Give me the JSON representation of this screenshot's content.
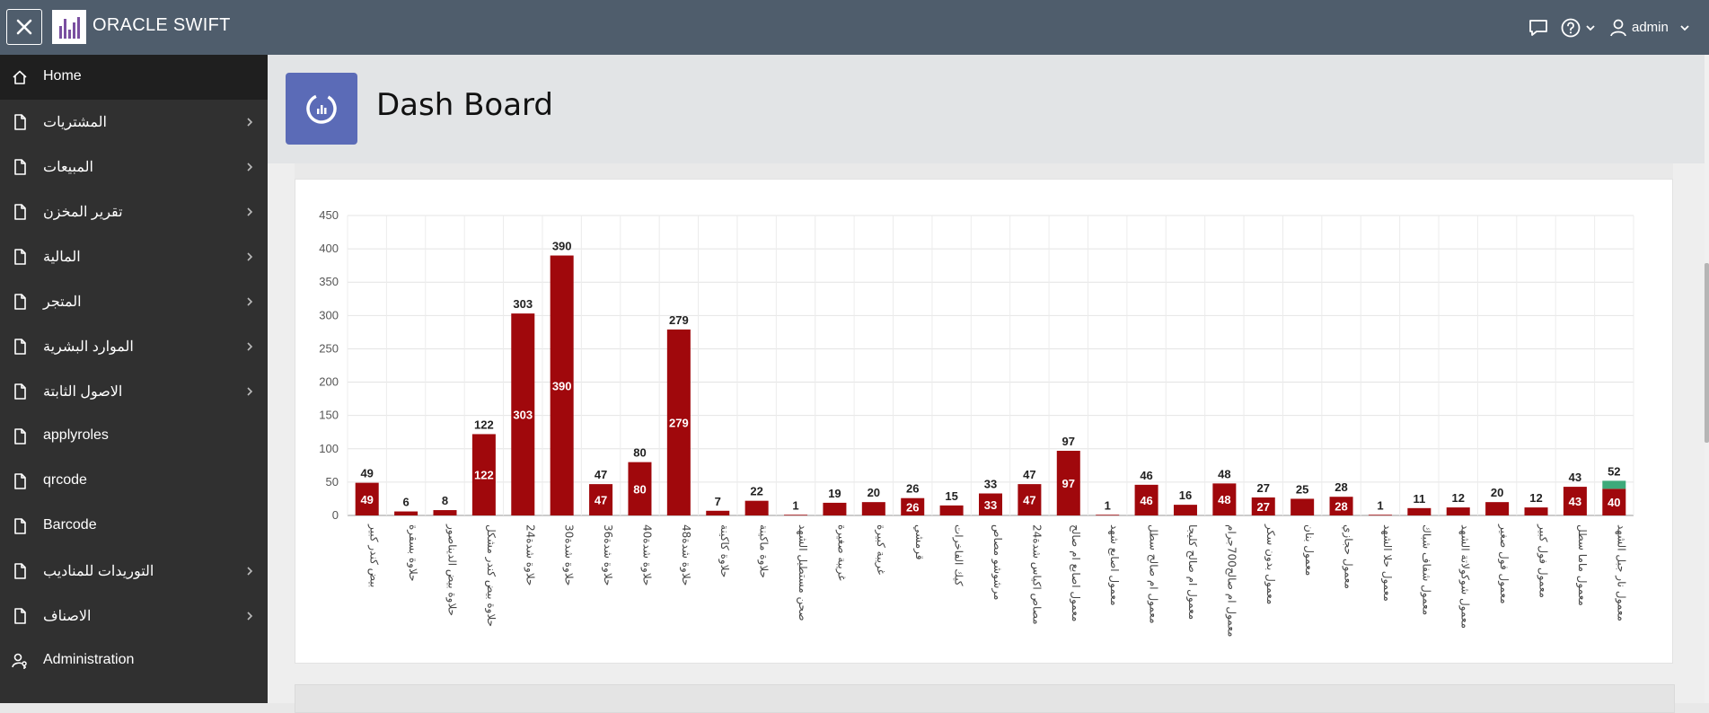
{
  "app": {
    "title": "ORACLE SWIFT",
    "user": "admin"
  },
  "page": {
    "title": "Dash Board"
  },
  "sidebar": {
    "items": [
      {
        "label": "Home",
        "icon": "home-icon",
        "has_children": false,
        "active": true
      },
      {
        "label": "المشتريات",
        "icon": "file-icon",
        "has_children": true
      },
      {
        "label": "المبيعات",
        "icon": "file-icon",
        "has_children": true
      },
      {
        "label": "تقرير المخزن",
        "icon": "file-icon",
        "has_children": true
      },
      {
        "label": "المالية",
        "icon": "file-icon",
        "has_children": true
      },
      {
        "label": "المتجر",
        "icon": "file-icon",
        "has_children": true
      },
      {
        "label": "الموارد البشرية",
        "icon": "file-icon",
        "has_children": true
      },
      {
        "label": "الاصول الثابتة",
        "icon": "file-icon",
        "has_children": true
      },
      {
        "label": "applyroles",
        "icon": "file-icon",
        "has_children": false
      },
      {
        "label": "qrcode",
        "icon": "file-icon",
        "has_children": false
      },
      {
        "label": "Barcode",
        "icon": "file-icon",
        "has_children": false
      },
      {
        "label": "التوريدات للمناديب",
        "icon": "file-icon",
        "has_children": true
      },
      {
        "label": "الاصناف",
        "icon": "file-icon",
        "has_children": true
      },
      {
        "label": "Administration",
        "icon": "user-key-icon",
        "has_children": false
      }
    ]
  },
  "colors": {
    "topbar": "#4f5d6c",
    "sidebar": "#303030",
    "bar_main": "#a0080c",
    "bar_secondary": "#3daa7a",
    "page_icon": "#5b6bb7"
  },
  "chart_data": {
    "type": "bar",
    "stacked": true,
    "ylim": [
      0,
      450
    ],
    "yticks": [
      0,
      50,
      100,
      150,
      200,
      250,
      300,
      350,
      400,
      450
    ],
    "grid": true,
    "categories": [
      "بيض كندر كبير",
      "حلاوة بسقرة",
      "حلاوة بيض الديناصور",
      "حلاوة بيض كندر مشكل",
      "حلاوة شدة24",
      "حلاوة شدة30",
      "حلاوة شدة36",
      "حلاوة شدة40",
      "حلاوة شدة48",
      "حلاوة كاكينة",
      "حلاوة ماكينة",
      "صحن مستطيل الشهد",
      "غريبة صغيرة",
      "غريبة كبيرة",
      "قرمشي",
      "كيك الفاخرات",
      "مرشوشو مصاص",
      "مصاص اكياس شدة24",
      "معمول اصابع ام صالح",
      "معمول اصابع شهد",
      "معمول ام صالح سطل",
      "معمول ام صالح كليجا",
      "معمول ام صالح700جرام",
      "معمول بدون سكر",
      "معمول بنان",
      "معمول حجازي",
      "معمول حلا الشهد",
      "معمول شفاف شباك",
      "معمول شوكولاتة الشهد",
      "معمول فول صغير",
      "معمول فول كبير",
      "معمول ماما سطل",
      "معمول نار جبل الشهد"
    ],
    "series": [
      {
        "values": [
          49,
          6,
          8,
          122,
          303,
          390,
          47,
          80,
          279,
          7,
          22,
          1,
          19,
          20,
          26,
          15,
          33,
          47,
          97,
          1,
          46,
          16,
          48,
          27,
          25,
          28,
          1,
          11,
          12,
          20,
          12,
          43,
          40
        ],
        "color": "#a0080c"
      },
      {
        "values": [
          0,
          0,
          0,
          0,
          0,
          0,
          0,
          0,
          0,
          0,
          0,
          0,
          0,
          0,
          0,
          0,
          0,
          0,
          0,
          0,
          0,
          0,
          0,
          0,
          0,
          0,
          0,
          0,
          0,
          0,
          0,
          0,
          12
        ],
        "color": "#3daa7a"
      }
    ],
    "totals": [
      49,
      6,
      8,
      122,
      303,
      390,
      47,
      80,
      279,
      7,
      22,
      1,
      19,
      20,
      26,
      15,
      33,
      47,
      97,
      1,
      46,
      16,
      48,
      27,
      25,
      28,
      1,
      11,
      12,
      20,
      12,
      43,
      52
    ]
  }
}
